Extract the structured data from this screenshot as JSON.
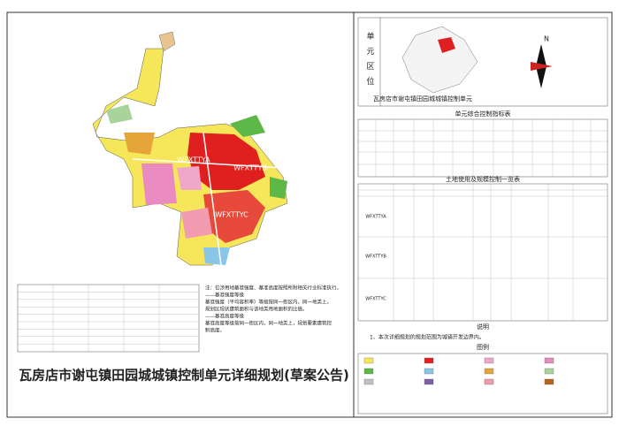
{
  "header": {
    "title": "瓦房店市谢屯镇田园城城镇控制单元详细规划(草案公告)"
  },
  "map": {
    "blocks": [
      "WFXTTYA",
      "WFXTTYB",
      "WFXTTYC"
    ]
  },
  "notes": {
    "lines": [
      "注：位涉用地基准强度、基准高度按照所附相关行业标准执行。",
      "——基准强度等级",
      "基准强度（平均容积率）等级按同一街区内，同一地类上，",
      "规划区现状建筑面积与该地类用地面积的比值。",
      "——基准高度等级",
      "基准高度等级按同一街区内，同一地类上，规划要素建筑控",
      "制高度。"
    ]
  },
  "location": {
    "label": "单元区位",
    "caption": "瓦房店市谢屯镇田园城城镇控制单元",
    "north": "N"
  },
  "indicator_table": {
    "title": "单元综合控制指标表"
  },
  "land_table": {
    "title": "土地使用及规模控制一览表",
    "rows": [
      "WFXTTYA",
      "WFXTTYB",
      "WFXTTYC"
    ]
  },
  "explanation": {
    "title": "说明",
    "text": "1、本次详细规划的规划范围为城镇开发边界内。"
  },
  "legend": {
    "title": "图例"
  }
}
